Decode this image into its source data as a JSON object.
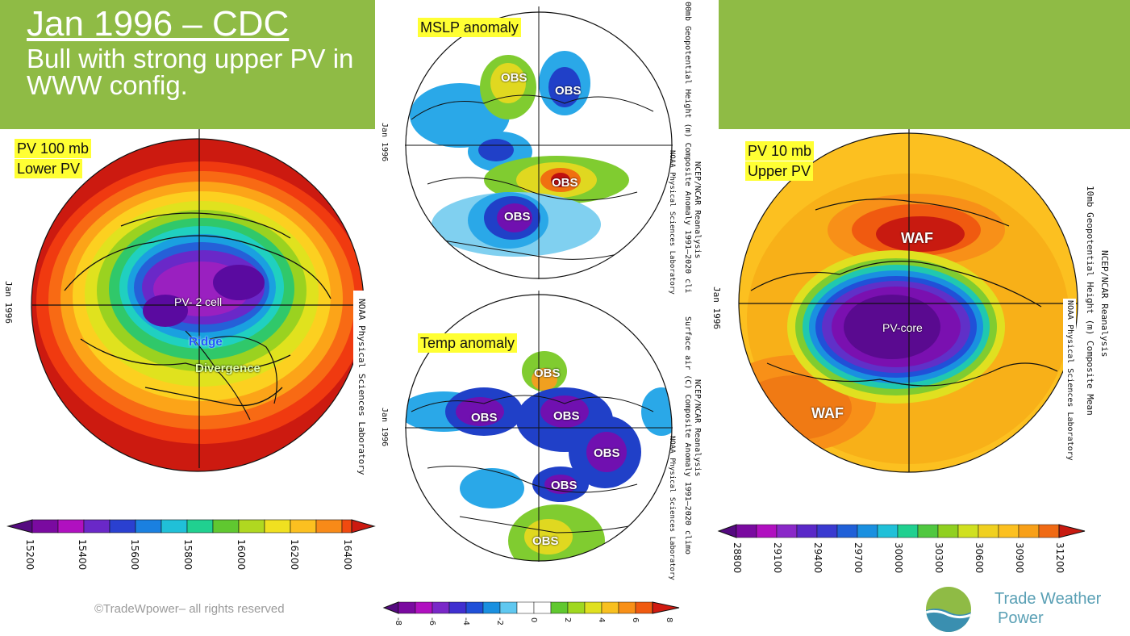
{
  "header": {
    "title": "Jan 1996 – CDC",
    "subtitle": "Bull with strong upper PV in WWW config."
  },
  "colors": {
    "green_band": "#8fbb45",
    "highlight": "#ffff33",
    "brand": "#5aa0b5"
  },
  "panels": {
    "left": {
      "label_line1": "PV 100 mb",
      "label_line2": "Lower PV",
      "date": "Jan 1996",
      "credit": "NOAA Physical Sciences Laboratory",
      "annotations": {
        "cell": "PV- 2 cell",
        "ridge": "Ridge",
        "divergence": "Divergence"
      },
      "colorbar_ticks": [
        "15200",
        "15400",
        "15600",
        "15800",
        "16000",
        "16200",
        "16400"
      ]
    },
    "mslp": {
      "label": "MSLP anomaly",
      "date": "Jan 1996",
      "header_line1": "NCEP/NCAR Reanalysis",
      "header_line2": "00mb Geopotential Height (m) Composite Anomaly 1991–2020 cli",
      "credit": "NOAA Physical Sciences Laboratory",
      "obs": [
        "OBS",
        "OBS",
        "OBS",
        "OBS"
      ]
    },
    "temp": {
      "label": "Temp anomaly",
      "date": "Jan 1996",
      "header_line1": "NCEP/NCAR Reanalysis",
      "header_line2": "Surface air (C) Composite Anomaly 1991–2020 climo",
      "credit": "NOAA Physical Sciences Laboratory",
      "obs": [
        "OBS",
        "OBS",
        "OBS",
        "OBS",
        "OBS",
        "OBS"
      ],
      "colorbar_ticks": [
        "-8",
        "-6",
        "-4",
        "-2",
        "0",
        "2",
        "4",
        "6",
        "8"
      ]
    },
    "right": {
      "label_line1": "PV 10 mb",
      "label_line2": "Upper PV",
      "date": "Jan 1996",
      "header_line1": "NCEP/NCAR Reanalysis",
      "header_line2": "10mb Geopotential Height (m) Composite Mean",
      "credit": "NOAA Physical Sciences Laboratory",
      "annotations": {
        "core": "PV-core",
        "waf_north": "WAF",
        "waf_west": "WAF"
      },
      "colorbar_ticks": [
        "28800",
        "29100",
        "29400",
        "29700",
        "30000",
        "30300",
        "30600",
        "30900",
        "31200"
      ]
    }
  },
  "footer": {
    "copyright": "©TradeWpower– all rights reserved",
    "brand_line1": "Trade Weather",
    "brand_line2": "Power"
  }
}
